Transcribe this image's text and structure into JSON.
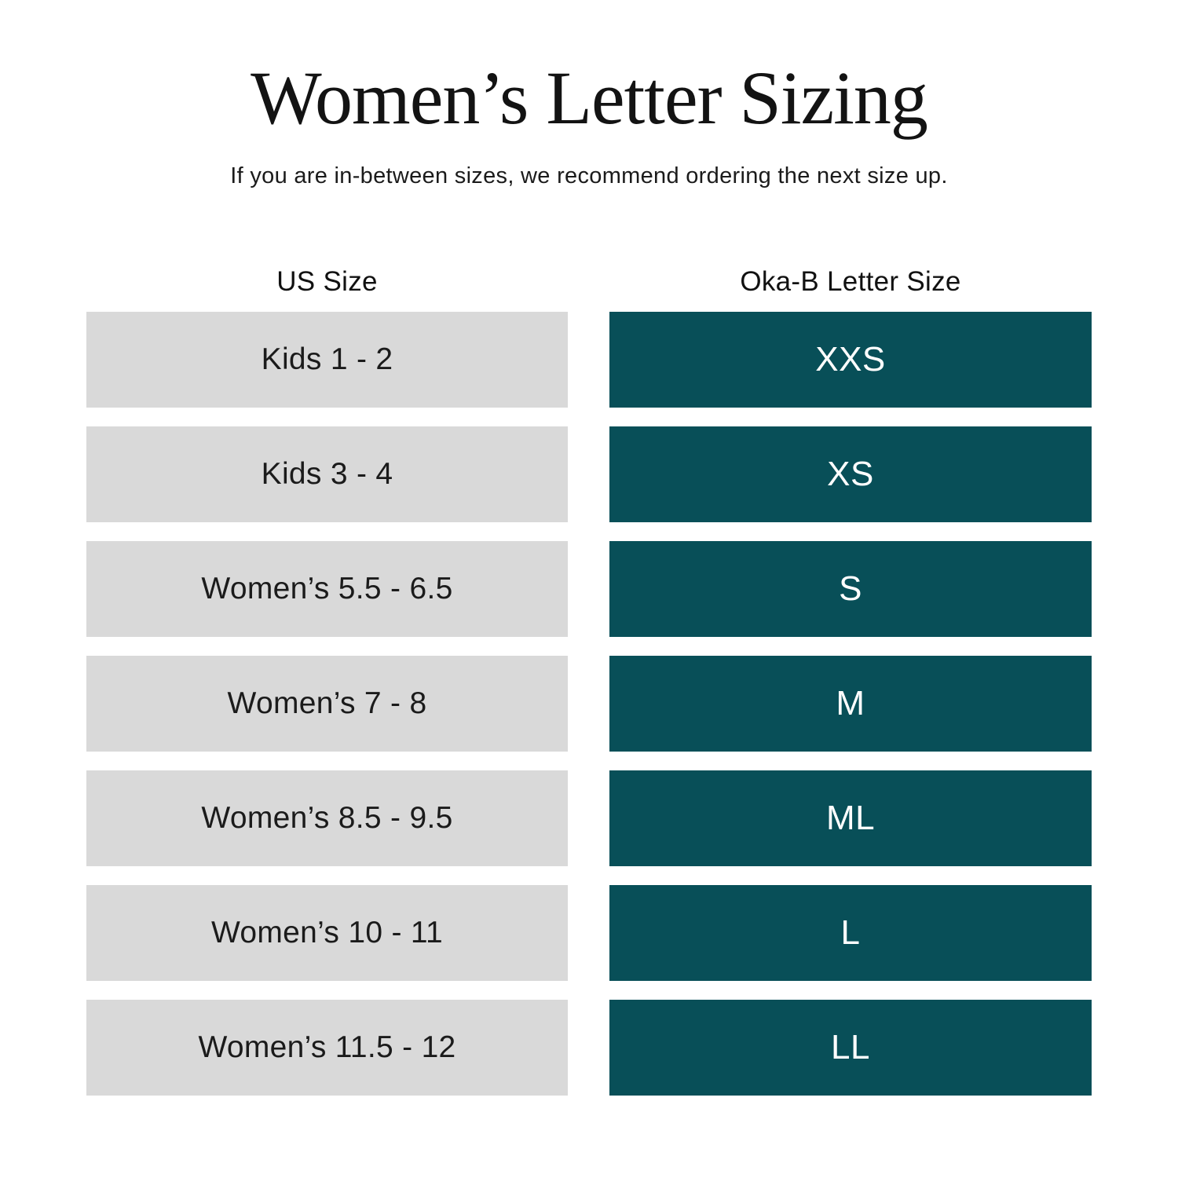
{
  "page": {
    "title": "Women’s Letter Sizing",
    "subtitle": "If you are in-between sizes, we recommend ordering the next size up."
  },
  "table": {
    "headers": {
      "us": "US Size",
      "letter": "Oka-B Letter Size"
    },
    "rows": [
      {
        "us_size": "Kids 1 - 2",
        "letter_size": "XXS"
      },
      {
        "us_size": "Kids 3 - 4",
        "letter_size": "XS"
      },
      {
        "us_size": "Women’s 5.5 - 6.5",
        "letter_size": "S"
      },
      {
        "us_size": "Women’s 7 - 8",
        "letter_size": "M"
      },
      {
        "us_size": "Women’s 8.5 - 9.5",
        "letter_size": "ML"
      },
      {
        "us_size": "Women’s 10 - 11",
        "letter_size": "L"
      },
      {
        "us_size": "Women’s 11.5 - 12",
        "letter_size": "LL"
      }
    ]
  },
  "chart_data": {
    "type": "table",
    "title": "Women’s Letter Sizing",
    "subtitle": "If you are in-between sizes, we recommend ordering the next size up.",
    "columns": [
      "US Size",
      "Oka-B Letter Size"
    ],
    "rows": [
      [
        "Kids 1 - 2",
        "XXS"
      ],
      [
        "Kids 3 - 4",
        "XS"
      ],
      [
        "Women’s 5.5 - 6.5",
        "S"
      ],
      [
        "Women’s 7 - 8",
        "M"
      ],
      [
        "Women’s 8.5 - 9.5",
        "ML"
      ],
      [
        "Women’s 10 - 11",
        "L"
      ],
      [
        "Women’s 11.5 - 12",
        "LL"
      ]
    ],
    "layout_hints": {
      "legend": "none",
      "grid": "off",
      "header_position": "above-columns"
    }
  },
  "colors": {
    "background": "#ffffff",
    "teal": "#084f58",
    "gray": "#d9d9d9",
    "text_dark": "#1b1b1b",
    "text_light": "#ffffff"
  }
}
